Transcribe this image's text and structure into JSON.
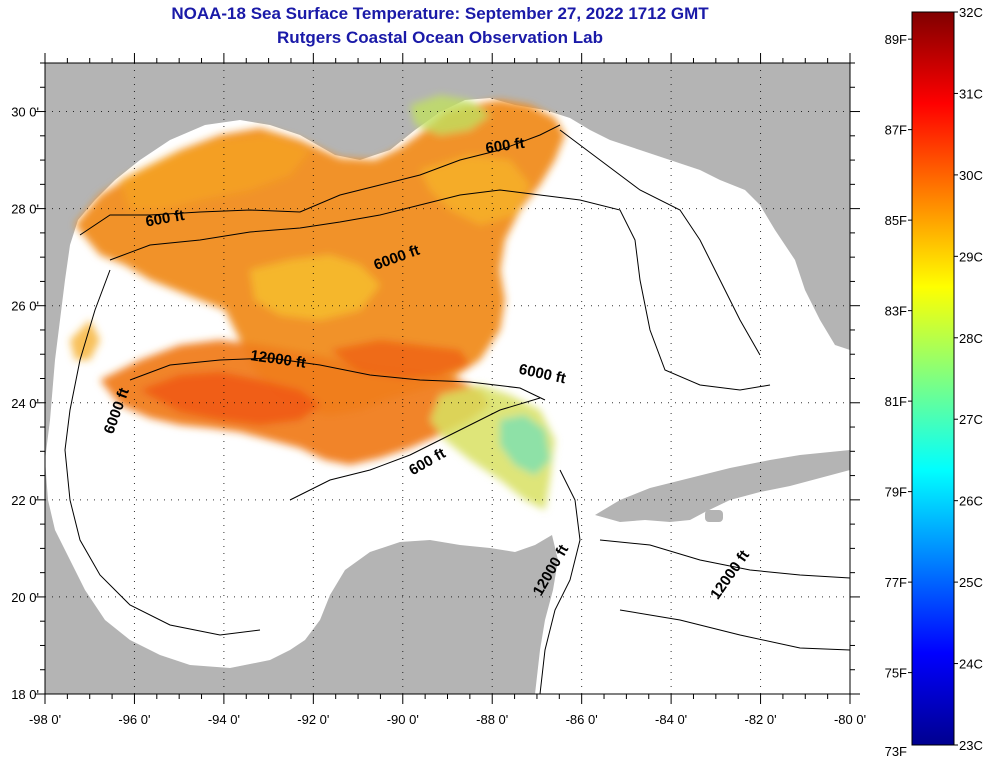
{
  "header": {
    "title": "NOAA-18 Sea Surface Temperature:  September 27, 2022 1712 GMT",
    "subtitle": "Rutgers Coastal Ocean Observation Lab"
  },
  "map": {
    "lon_range": [
      -98,
      -80
    ],
    "lat_range": [
      18,
      31
    ],
    "lon_ticks": [
      "-98 0'",
      "-96 0'",
      "-94 0'",
      "-92 0'",
      "-90 0'",
      "-88 0'",
      "-86 0'",
      "-84 0'",
      "-82 0'",
      "-80 0'"
    ],
    "lat_ticks": [
      "30 0'",
      "28 0'",
      "26 0'",
      "24 0'",
      "22 0'",
      "20 0'",
      "18 0'"
    ],
    "grid": "dotted",
    "land_color": "#b4b4b4",
    "contour_labels": [
      {
        "text": "600 ft",
        "lon": -87.7,
        "lat": 29.2
      },
      {
        "text": "600 ft",
        "lon": -95.3,
        "lat": 27.7
      },
      {
        "text": "6000 ft",
        "lon": -90.1,
        "lat": 26.9
      },
      {
        "text": "12000 ft",
        "lon": -92.8,
        "lat": 24.8
      },
      {
        "text": "6000 ft",
        "lon": -96.3,
        "lat": 23.8
      },
      {
        "text": "6000 ft",
        "lon": -86.9,
        "lat": 24.5
      },
      {
        "text": "600 ft",
        "lon": -89.4,
        "lat": 22.7
      },
      {
        "text": "12000 ft",
        "lon": -86.6,
        "lat": 20.5
      },
      {
        "text": "12000 ft",
        "lon": -82.6,
        "lat": 20.4
      }
    ]
  },
  "colorbar": {
    "min_c": 23,
    "max_c": 32,
    "left_labels": [
      "89F",
      "87F",
      "85F",
      "83F",
      "81F",
      "79F",
      "77F",
      "75F",
      "73F"
    ],
    "right_labels": [
      "32C",
      "31C",
      "30C",
      "29C",
      "28C",
      "27C",
      "26C",
      "25C",
      "24C",
      "23C"
    ],
    "colors": [
      "#00008f",
      "#0000ff",
      "#0080ff",
      "#00ffff",
      "#80ff80",
      "#ffff00",
      "#ff8000",
      "#ff0000",
      "#800000"
    ]
  }
}
